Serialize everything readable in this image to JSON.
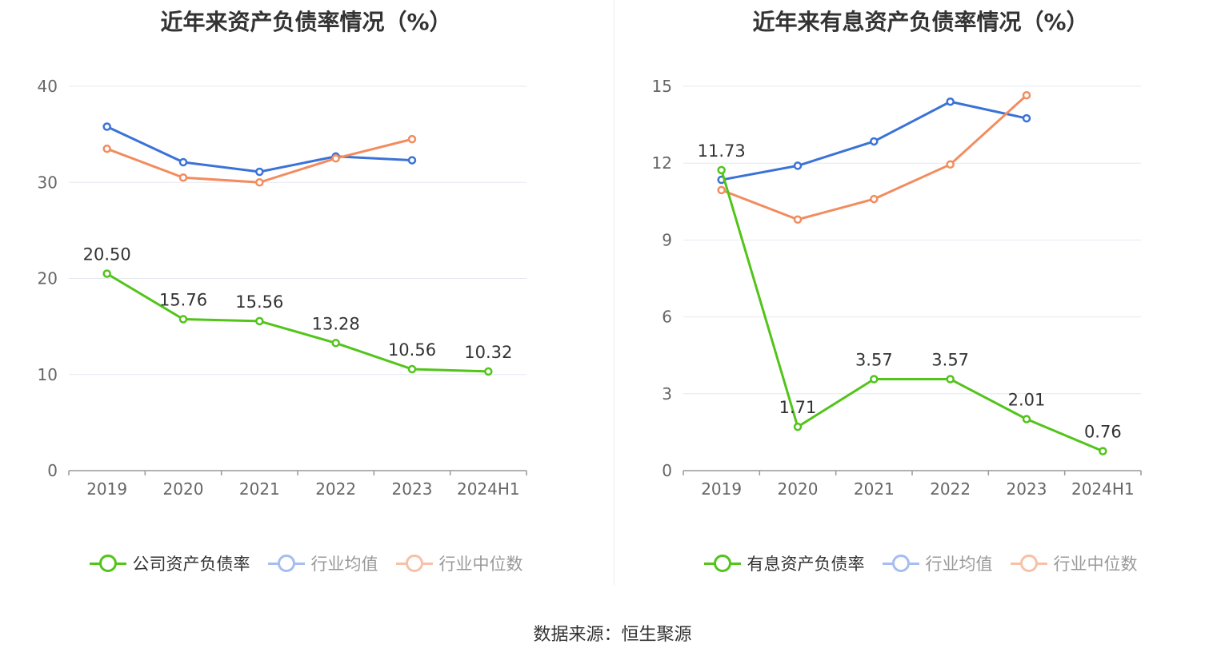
{
  "source_text": "数据来源：恒生聚源",
  "chart_data": [
    {
      "type": "line",
      "title": "近年来资产负债率情况（%）",
      "categories": [
        "2019",
        "2020",
        "2021",
        "2022",
        "2023",
        "2024H1"
      ],
      "ylim": [
        0,
        40
      ],
      "yticks": [
        0,
        10,
        20,
        30,
        40
      ],
      "grid": true,
      "legend_position": "bottom",
      "series": [
        {
          "name": "公司资产负债率",
          "color": "#52c41a",
          "values": [
            20.5,
            15.76,
            15.56,
            13.28,
            10.56,
            10.32
          ],
          "labels": [
            "20.50",
            "15.76",
            "15.56",
            "13.28",
            "10.56",
            "10.32"
          ],
          "legend_active": true
        },
        {
          "name": "行业均值",
          "color": "#3a72d8",
          "values": [
            35.8,
            32.1,
            31.1,
            32.7,
            32.3,
            null
          ],
          "legend_active": false
        },
        {
          "name": "行业中位数",
          "color": "#f28c5e",
          "values": [
            33.5,
            30.5,
            30.0,
            32.5,
            34.5,
            null
          ],
          "legend_active": false
        }
      ]
    },
    {
      "type": "line",
      "title": "近年来有息资产负债率情况（%）",
      "categories": [
        "2019",
        "2020",
        "2021",
        "2022",
        "2023",
        "2024H1"
      ],
      "ylim": [
        0,
        15
      ],
      "yticks": [
        0,
        3,
        6,
        9,
        12,
        15
      ],
      "grid": true,
      "legend_position": "bottom",
      "series": [
        {
          "name": "有息资产负债率",
          "color": "#52c41a",
          "values": [
            11.73,
            1.71,
            3.57,
            3.57,
            2.01,
            0.76
          ],
          "labels": [
            "11.73",
            "1.71",
            "3.57",
            "3.57",
            "2.01",
            "0.76"
          ],
          "legend_active": true
        },
        {
          "name": "行业均值",
          "color": "#3a72d8",
          "values": [
            11.35,
            11.9,
            12.85,
            14.4,
            13.75,
            null
          ],
          "legend_active": false
        },
        {
          "name": "行业中位数",
          "color": "#f28c5e",
          "values": [
            10.95,
            9.8,
            10.6,
            11.95,
            14.65,
            null
          ],
          "legend_active": false
        }
      ]
    }
  ]
}
